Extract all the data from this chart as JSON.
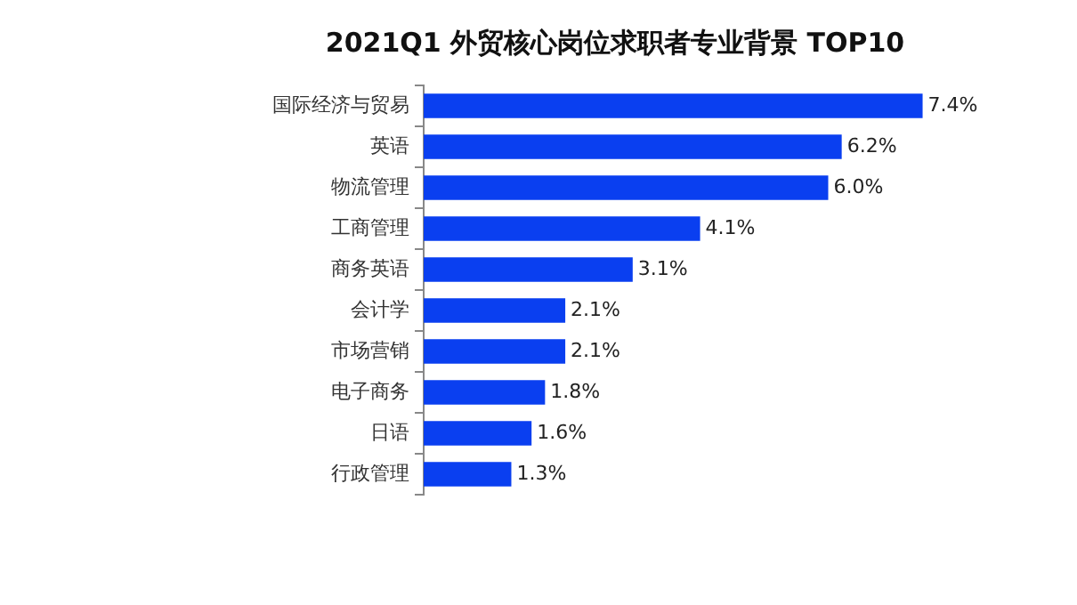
{
  "chart_data": {
    "type": "bar",
    "orientation": "horizontal",
    "title": "2021Q1 外贸核心岗位求职者专业背景 TOP10",
    "categories": [
      "国际经济与贸易",
      "英语",
      "物流管理",
      "工商管理",
      "商务英语",
      "会计学",
      "市场营销",
      "电子商务",
      "日语",
      "行政管理"
    ],
    "values": [
      7.4,
      6.2,
      6.0,
      4.1,
      3.1,
      2.1,
      2.1,
      1.8,
      1.6,
      1.3
    ],
    "value_labels": [
      "7.4%",
      "6.2%",
      "6.0%",
      "4.1%",
      "3.1%",
      "2.1%",
      "2.1%",
      "1.8%",
      "1.6%",
      "1.3%"
    ],
    "color": "#0a3ff0",
    "tick_labels": "y",
    "grid": false,
    "legend": false
  }
}
